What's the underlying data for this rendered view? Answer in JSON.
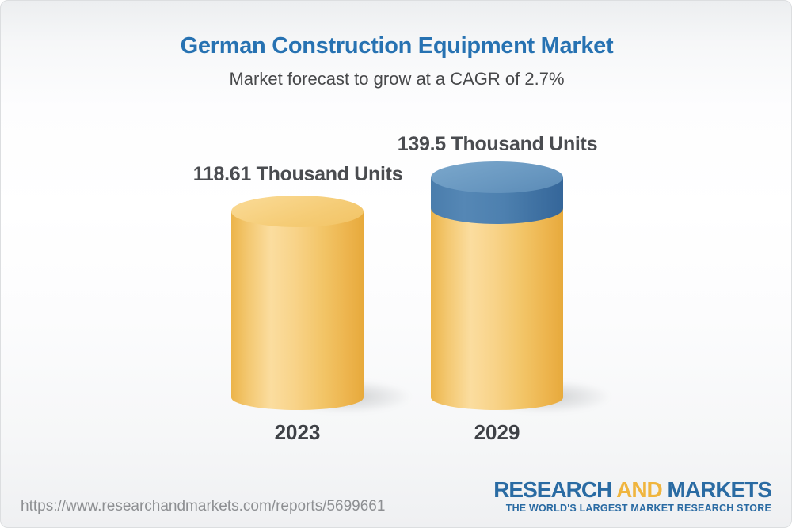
{
  "header": {
    "title": "German Construction Equipment Market",
    "subtitle": "Market forecast to grow at a CAGR of 2.7%"
  },
  "chart_data": {
    "type": "bar",
    "subtype": "3d_cylinder",
    "title": "German Construction Equipment Market",
    "subtitle": "Market forecast to grow at a CAGR of 2.7%",
    "unit": "Thousand Units",
    "cagr_pct": 2.7,
    "categories": [
      "2023",
      "2029"
    ],
    "values": [
      118.61,
      139.5
    ],
    "bars": [
      {
        "category": "2023",
        "value": 118.61,
        "label": "118.61 Thousand Units",
        "body_color": "#f3c569"
      },
      {
        "category": "2029",
        "value": 139.5,
        "label": "139.5 Thousand Units",
        "body_color": "#f3c569",
        "growth_segment_color": "#4d80ae"
      }
    ],
    "legend_position": "none",
    "grid": false,
    "axes_visible": false
  },
  "footer": {
    "url": "https://www.researchandmarkets.com/reports/5699661",
    "logo": {
      "word1": "RESEARCH",
      "word2": "AND",
      "word3": "MARKETS",
      "tagline": "THE WORLD'S LARGEST MARKET RESEARCH STORE"
    }
  },
  "colors": {
    "title_blue": "#2772b2",
    "subtitle_gray": "#47484a",
    "label_gray": "#4a4c50",
    "bar_yellow": "#f3c569",
    "bar_yellow_light": "#f7d286",
    "bar_blue": "#4d80ae",
    "bar_blue_light": "#6f9dc4",
    "logo_blue": "#2a6ba3",
    "logo_gold": "#f0b53e",
    "url_gray": "#8d8f92"
  }
}
